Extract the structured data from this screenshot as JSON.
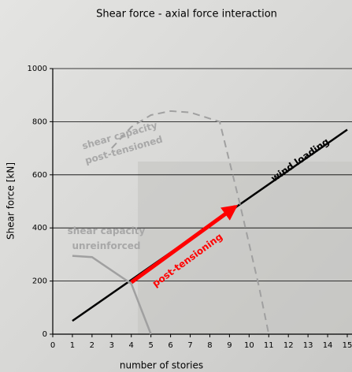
{
  "chart_data": {
    "type": "line",
    "title": "Shear force - axial force interaction",
    "xlabel": "number of stories",
    "ylabel": "Shear force [kN]",
    "xlim": [
      0,
      15
    ],
    "xticks": [
      0,
      1,
      2,
      3,
      4,
      5,
      6,
      7,
      8,
      9,
      10,
      11,
      12,
      13,
      14,
      15
    ],
    "ylim": [
      0,
      1000
    ],
    "yticks": [
      0,
      200,
      400,
      600,
      800,
      1000
    ],
    "grid": true,
    "series": [
      {
        "label": [
          "wind loading"
        ],
        "color": "#000000",
        "style": "solid",
        "x": [
          1,
          15
        ],
        "values": [
          50,
          770
        ]
      },
      {
        "label": [
          "post-tensioning"
        ],
        "color": "#ff0000",
        "style": "arrow",
        "x": [
          4,
          9.3
        ],
        "values": [
          195,
          480
        ]
      },
      {
        "label": [
          "shear capacity",
          "unreinforced"
        ],
        "color": "#a0a0a0",
        "style": "solid",
        "x": [
          1,
          2,
          4,
          5
        ],
        "values": [
          295,
          290,
          190,
          0
        ]
      },
      {
        "label": [
          "shear capacity",
          "post-tensioned"
        ],
        "color": "#a0a0a0",
        "style": "dashed",
        "x": [
          3,
          4,
          5,
          6,
          7,
          8.5,
          9.5,
          10.5,
          11
        ],
        "values": [
          700,
          780,
          825,
          840,
          835,
          800,
          500,
          180,
          0
        ]
      }
    ]
  }
}
